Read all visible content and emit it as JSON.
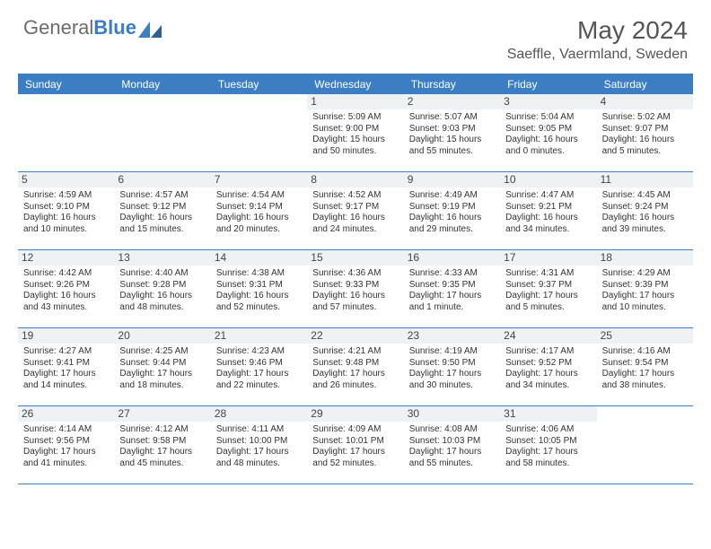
{
  "brand": {
    "part1": "General",
    "part2": "Blue"
  },
  "title": "May 2024",
  "location": "Saeffle, Vaermland, Sweden",
  "colors": {
    "accent": "#3b7ec4",
    "text": "#333333",
    "muted": "#6b6b6b",
    "daybg": "#eef2f5"
  },
  "dayNames": [
    "Sunday",
    "Monday",
    "Tuesday",
    "Wednesday",
    "Thursday",
    "Friday",
    "Saturday"
  ],
  "weeks": [
    [
      null,
      null,
      null,
      {
        "n": "1",
        "sr": "Sunrise: 5:09 AM",
        "ss": "Sunset: 9:00 PM",
        "d1": "Daylight: 15 hours",
        "d2": "and 50 minutes."
      },
      {
        "n": "2",
        "sr": "Sunrise: 5:07 AM",
        "ss": "Sunset: 9:03 PM",
        "d1": "Daylight: 15 hours",
        "d2": "and 55 minutes."
      },
      {
        "n": "3",
        "sr": "Sunrise: 5:04 AM",
        "ss": "Sunset: 9:05 PM",
        "d1": "Daylight: 16 hours",
        "d2": "and 0 minutes."
      },
      {
        "n": "4",
        "sr": "Sunrise: 5:02 AM",
        "ss": "Sunset: 9:07 PM",
        "d1": "Daylight: 16 hours",
        "d2": "and 5 minutes."
      }
    ],
    [
      {
        "n": "5",
        "sr": "Sunrise: 4:59 AM",
        "ss": "Sunset: 9:10 PM",
        "d1": "Daylight: 16 hours",
        "d2": "and 10 minutes."
      },
      {
        "n": "6",
        "sr": "Sunrise: 4:57 AM",
        "ss": "Sunset: 9:12 PM",
        "d1": "Daylight: 16 hours",
        "d2": "and 15 minutes."
      },
      {
        "n": "7",
        "sr": "Sunrise: 4:54 AM",
        "ss": "Sunset: 9:14 PM",
        "d1": "Daylight: 16 hours",
        "d2": "and 20 minutes."
      },
      {
        "n": "8",
        "sr": "Sunrise: 4:52 AM",
        "ss": "Sunset: 9:17 PM",
        "d1": "Daylight: 16 hours",
        "d2": "and 24 minutes."
      },
      {
        "n": "9",
        "sr": "Sunrise: 4:49 AM",
        "ss": "Sunset: 9:19 PM",
        "d1": "Daylight: 16 hours",
        "d2": "and 29 minutes."
      },
      {
        "n": "10",
        "sr": "Sunrise: 4:47 AM",
        "ss": "Sunset: 9:21 PM",
        "d1": "Daylight: 16 hours",
        "d2": "and 34 minutes."
      },
      {
        "n": "11",
        "sr": "Sunrise: 4:45 AM",
        "ss": "Sunset: 9:24 PM",
        "d1": "Daylight: 16 hours",
        "d2": "and 39 minutes."
      }
    ],
    [
      {
        "n": "12",
        "sr": "Sunrise: 4:42 AM",
        "ss": "Sunset: 9:26 PM",
        "d1": "Daylight: 16 hours",
        "d2": "and 43 minutes."
      },
      {
        "n": "13",
        "sr": "Sunrise: 4:40 AM",
        "ss": "Sunset: 9:28 PM",
        "d1": "Daylight: 16 hours",
        "d2": "and 48 minutes."
      },
      {
        "n": "14",
        "sr": "Sunrise: 4:38 AM",
        "ss": "Sunset: 9:31 PM",
        "d1": "Daylight: 16 hours",
        "d2": "and 52 minutes."
      },
      {
        "n": "15",
        "sr": "Sunrise: 4:36 AM",
        "ss": "Sunset: 9:33 PM",
        "d1": "Daylight: 16 hours",
        "d2": "and 57 minutes."
      },
      {
        "n": "16",
        "sr": "Sunrise: 4:33 AM",
        "ss": "Sunset: 9:35 PM",
        "d1": "Daylight: 17 hours",
        "d2": "and 1 minute."
      },
      {
        "n": "17",
        "sr": "Sunrise: 4:31 AM",
        "ss": "Sunset: 9:37 PM",
        "d1": "Daylight: 17 hours",
        "d2": "and 5 minutes."
      },
      {
        "n": "18",
        "sr": "Sunrise: 4:29 AM",
        "ss": "Sunset: 9:39 PM",
        "d1": "Daylight: 17 hours",
        "d2": "and 10 minutes."
      }
    ],
    [
      {
        "n": "19",
        "sr": "Sunrise: 4:27 AM",
        "ss": "Sunset: 9:41 PM",
        "d1": "Daylight: 17 hours",
        "d2": "and 14 minutes."
      },
      {
        "n": "20",
        "sr": "Sunrise: 4:25 AM",
        "ss": "Sunset: 9:44 PM",
        "d1": "Daylight: 17 hours",
        "d2": "and 18 minutes."
      },
      {
        "n": "21",
        "sr": "Sunrise: 4:23 AM",
        "ss": "Sunset: 9:46 PM",
        "d1": "Daylight: 17 hours",
        "d2": "and 22 minutes."
      },
      {
        "n": "22",
        "sr": "Sunrise: 4:21 AM",
        "ss": "Sunset: 9:48 PM",
        "d1": "Daylight: 17 hours",
        "d2": "and 26 minutes."
      },
      {
        "n": "23",
        "sr": "Sunrise: 4:19 AM",
        "ss": "Sunset: 9:50 PM",
        "d1": "Daylight: 17 hours",
        "d2": "and 30 minutes."
      },
      {
        "n": "24",
        "sr": "Sunrise: 4:17 AM",
        "ss": "Sunset: 9:52 PM",
        "d1": "Daylight: 17 hours",
        "d2": "and 34 minutes."
      },
      {
        "n": "25",
        "sr": "Sunrise: 4:16 AM",
        "ss": "Sunset: 9:54 PM",
        "d1": "Daylight: 17 hours",
        "d2": "and 38 minutes."
      }
    ],
    [
      {
        "n": "26",
        "sr": "Sunrise: 4:14 AM",
        "ss": "Sunset: 9:56 PM",
        "d1": "Daylight: 17 hours",
        "d2": "and 41 minutes."
      },
      {
        "n": "27",
        "sr": "Sunrise: 4:12 AM",
        "ss": "Sunset: 9:58 PM",
        "d1": "Daylight: 17 hours",
        "d2": "and 45 minutes."
      },
      {
        "n": "28",
        "sr": "Sunrise: 4:11 AM",
        "ss": "Sunset: 10:00 PM",
        "d1": "Daylight: 17 hours",
        "d2": "and 48 minutes."
      },
      {
        "n": "29",
        "sr": "Sunrise: 4:09 AM",
        "ss": "Sunset: 10:01 PM",
        "d1": "Daylight: 17 hours",
        "d2": "and 52 minutes."
      },
      {
        "n": "30",
        "sr": "Sunrise: 4:08 AM",
        "ss": "Sunset: 10:03 PM",
        "d1": "Daylight: 17 hours",
        "d2": "and 55 minutes."
      },
      {
        "n": "31",
        "sr": "Sunrise: 4:06 AM",
        "ss": "Sunset: 10:05 PM",
        "d1": "Daylight: 17 hours",
        "d2": "and 58 minutes."
      },
      null
    ]
  ]
}
